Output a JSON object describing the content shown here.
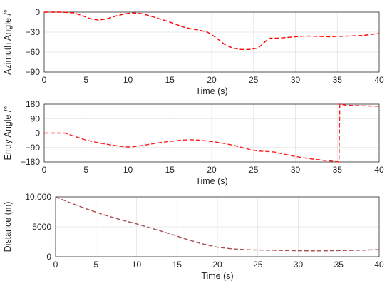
{
  "chart_data": [
    {
      "type": "line",
      "xlabel": "Time (s)",
      "ylabel": "Azimuth Angle /°",
      "xlim": [
        0,
        40
      ],
      "ylim": [
        -90,
        0
      ],
      "xticks": [
        "0",
        "5",
        "10",
        "15",
        "20",
        "25",
        "30",
        "35",
        "40"
      ],
      "yticks": [
        "0",
        "−30",
        "−60",
        "−90"
      ],
      "grid": true,
      "series": [
        {
          "color": "#ff0000",
          "style": "dashed",
          "x": [
            0,
            2,
            3.5,
            4.5,
            5.5,
            6.5,
            7.5,
            8.5,
            9.5,
            10.5,
            11.5,
            12.5,
            13.5,
            14.5,
            15.5,
            16.5,
            17.5,
            18.5,
            19.5,
            20.5,
            21.5,
            22.5,
            23.5,
            24.5,
            25.5,
            26,
            26.5,
            27,
            28,
            29,
            30,
            31,
            32,
            34,
            36,
            38,
            40
          ],
          "y": [
            0,
            0,
            -1,
            -5,
            -10,
            -12,
            -10,
            -6,
            -3,
            -1,
            -2,
            -5,
            -9,
            -13,
            -17,
            -22,
            -25,
            -27,
            -30,
            -38,
            -48,
            -54,
            -56,
            -56,
            -54,
            -49,
            -43,
            -39,
            -39,
            -38,
            -37,
            -36,
            -36,
            -37,
            -36,
            -35,
            -32
          ]
        }
      ]
    },
    {
      "type": "line",
      "xlabel": "Time (s)",
      "ylabel": "Entry Angle /°",
      "xlim": [
        0,
        40
      ],
      "ylim": [
        -180,
        180
      ],
      "xticks": [
        "0",
        "5",
        "10",
        "15",
        "20",
        "25",
        "30",
        "35",
        "40"
      ],
      "yticks": [
        "180",
        "90",
        "0",
        "−90",
        "−180"
      ],
      "grid": true,
      "series": [
        {
          "color": "#ff1a1a",
          "style": "dashed",
          "x": [
            0,
            2,
            2.5,
            3.5,
            5,
            6.5,
            8,
            9,
            10,
            11,
            12,
            13.5,
            15,
            16.5,
            17.5,
            18.5,
            19.5,
            20.5,
            21.5,
            22.5,
            23.5,
            24.5,
            25.5,
            26.5,
            27.5,
            28.5,
            30,
            31.5,
            33,
            34.5,
            35.2,
            35.3,
            36,
            38,
            40
          ],
          "y": [
            0,
            0,
            0,
            -18,
            -44,
            -61,
            -74,
            -82,
            -87,
            -83,
            -75,
            -62,
            -52,
            -44,
            -42,
            -44,
            -50,
            -56,
            -65,
            -75,
            -88,
            -102,
            -112,
            -114,
            -118,
            -130,
            -146,
            -158,
            -168,
            -176,
            -180,
            180,
            174,
            170,
            167
          ]
        }
      ]
    },
    {
      "type": "line",
      "xlabel": "Time (s)",
      "ylabel": "Distance (m)",
      "xlim": [
        0,
        40
      ],
      "ylim": [
        0,
        10000
      ],
      "xticks": [
        "0",
        "5",
        "10",
        "15",
        "20",
        "25",
        "30",
        "35",
        "40"
      ],
      "yticks": [
        "10,000",
        "5000",
        "0"
      ],
      "grid": true,
      "series": [
        {
          "color": "#a64d4d",
          "style": "dashed",
          "x": [
            0,
            2,
            4,
            6,
            8,
            10,
            12,
            14,
            16,
            18,
            20,
            22,
            24,
            26,
            28,
            30,
            32,
            34,
            36,
            38,
            40
          ],
          "y": [
            10000,
            8900,
            7900,
            7000,
            6200,
            5500,
            4700,
            3900,
            3000,
            2200,
            1600,
            1300,
            1150,
            1100,
            1050,
            1000,
            980,
            1000,
            1050,
            1100,
            1200
          ]
        }
      ]
    }
  ]
}
